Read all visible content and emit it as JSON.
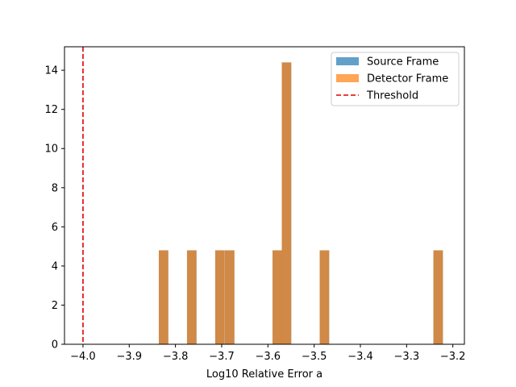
{
  "chart_data": {
    "type": "bar",
    "title": "",
    "xlabel": "Log10 Relative Error a",
    "ylabel": "",
    "xlim": [
      -4.04,
      -3.175
    ],
    "ylim": [
      0,
      15.2
    ],
    "xticks": [
      -4.0,
      -3.9,
      -3.8,
      -3.7,
      -3.6,
      -3.5,
      -3.4,
      -3.3,
      -3.2
    ],
    "xtick_labels": [
      "−4.0",
      "−3.9",
      "−3.8",
      "−3.7",
      "−3.6",
      "−3.5",
      "−3.4",
      "−3.3",
      "−3.2"
    ],
    "yticks": [
      0,
      2,
      4,
      6,
      8,
      10,
      12,
      14
    ],
    "ytick_labels": [
      "0",
      "2",
      "4",
      "6",
      "8",
      "10",
      "12",
      "14"
    ],
    "bin_width": 0.0205,
    "series": [
      {
        "name": "Source Frame",
        "color": "#1f77b4",
        "alpha": 0.7,
        "bins": [
          {
            "left": -3.836,
            "value": 4.8
          },
          {
            "left": -3.775,
            "value": 4.8
          },
          {
            "left": -3.714,
            "value": 4.8
          },
          {
            "left": -3.693,
            "value": 4.8
          },
          {
            "left": -3.59,
            "value": 4.8
          },
          {
            "left": -3.57,
            "value": 14.4
          },
          {
            "left": -3.488,
            "value": 4.8
          },
          {
            "left": -3.242,
            "value": 4.8
          }
        ]
      },
      {
        "name": "Detector Frame",
        "color": "#ff7f0e",
        "alpha": 0.7,
        "bins": [
          {
            "left": -3.836,
            "value": 4.8
          },
          {
            "left": -3.775,
            "value": 4.8
          },
          {
            "left": -3.714,
            "value": 4.8
          },
          {
            "left": -3.693,
            "value": 4.8
          },
          {
            "left": -3.59,
            "value": 4.8
          },
          {
            "left": -3.57,
            "value": 14.4
          },
          {
            "left": -3.488,
            "value": 4.8
          },
          {
            "left": -3.242,
            "value": 4.8
          }
        ]
      }
    ],
    "threshold": {
      "name": "Threshold",
      "x": -4.0,
      "color": "#e00000",
      "style": "dashed"
    },
    "legend": {
      "position": "upper right",
      "entries": [
        "Source Frame",
        "Detector Frame",
        "Threshold"
      ]
    },
    "grid": false
  }
}
